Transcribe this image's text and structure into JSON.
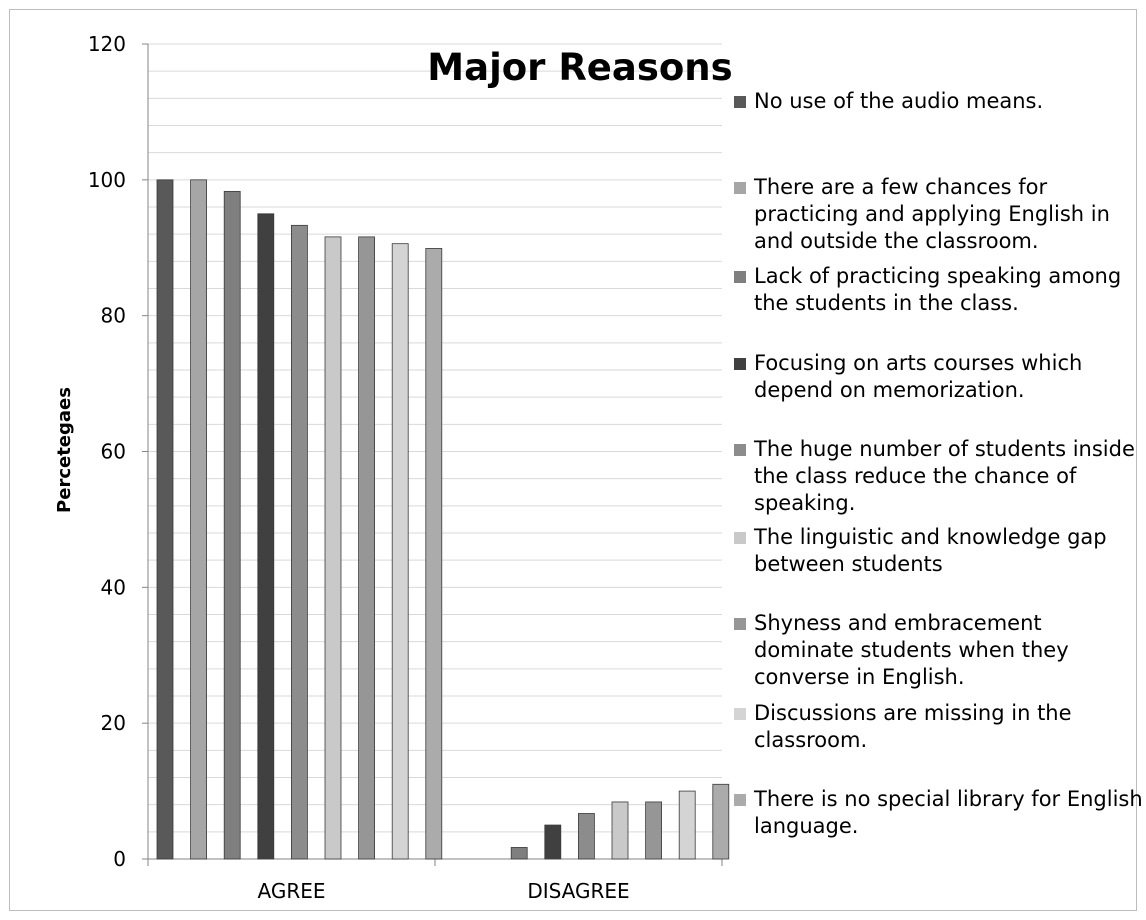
{
  "chart_data": {
    "type": "bar",
    "title": "Major Reasons",
    "xlabel": "",
    "ylabel": "Percetegaes",
    "ylim": [
      0,
      120
    ],
    "y_ticks": [
      0,
      20,
      40,
      60,
      80,
      100,
      120
    ],
    "grid": true,
    "legend_position": "right",
    "categories": [
      "AGREE",
      "DISAGREE"
    ],
    "series": [
      {
        "name": "No use of the audio means.",
        "values": [
          100,
          0
        ],
        "color": "#595959"
      },
      {
        "name": "There are a few chances for practicing and applying English in and outside the classroom.",
        "values": [
          100,
          0
        ],
        "color": "#a6a6a6"
      },
      {
        "name": "Lack of practicing speaking among the students in the class.",
        "values": [
          98.3,
          1.7
        ],
        "color": "#7f7f7f"
      },
      {
        "name": "Focusing on arts courses which depend on memorization.",
        "values": [
          95,
          5
        ],
        "color": "#404040"
      },
      {
        "name": "The huge number of students inside the class reduce the chance of speaking.",
        "values": [
          93.3,
          6.7
        ],
        "color": "#8c8c8c"
      },
      {
        "name": "The linguistic and knowledge gap between students",
        "values": [
          91.6,
          8.4
        ],
        "color": "#c9c9c9"
      },
      {
        "name": "Shyness and embracement dominate students when they converse in English.",
        "values": [
          91.6,
          8.4
        ],
        "color": "#969696"
      },
      {
        "name": "Discussions are missing in the classroom.",
        "values": [
          90.6,
          10
        ],
        "color": "#d4d4d4"
      },
      {
        "name": "There is no special library for English language.",
        "values": [
          89.9,
          11
        ],
        "color": "#ababab"
      }
    ]
  }
}
